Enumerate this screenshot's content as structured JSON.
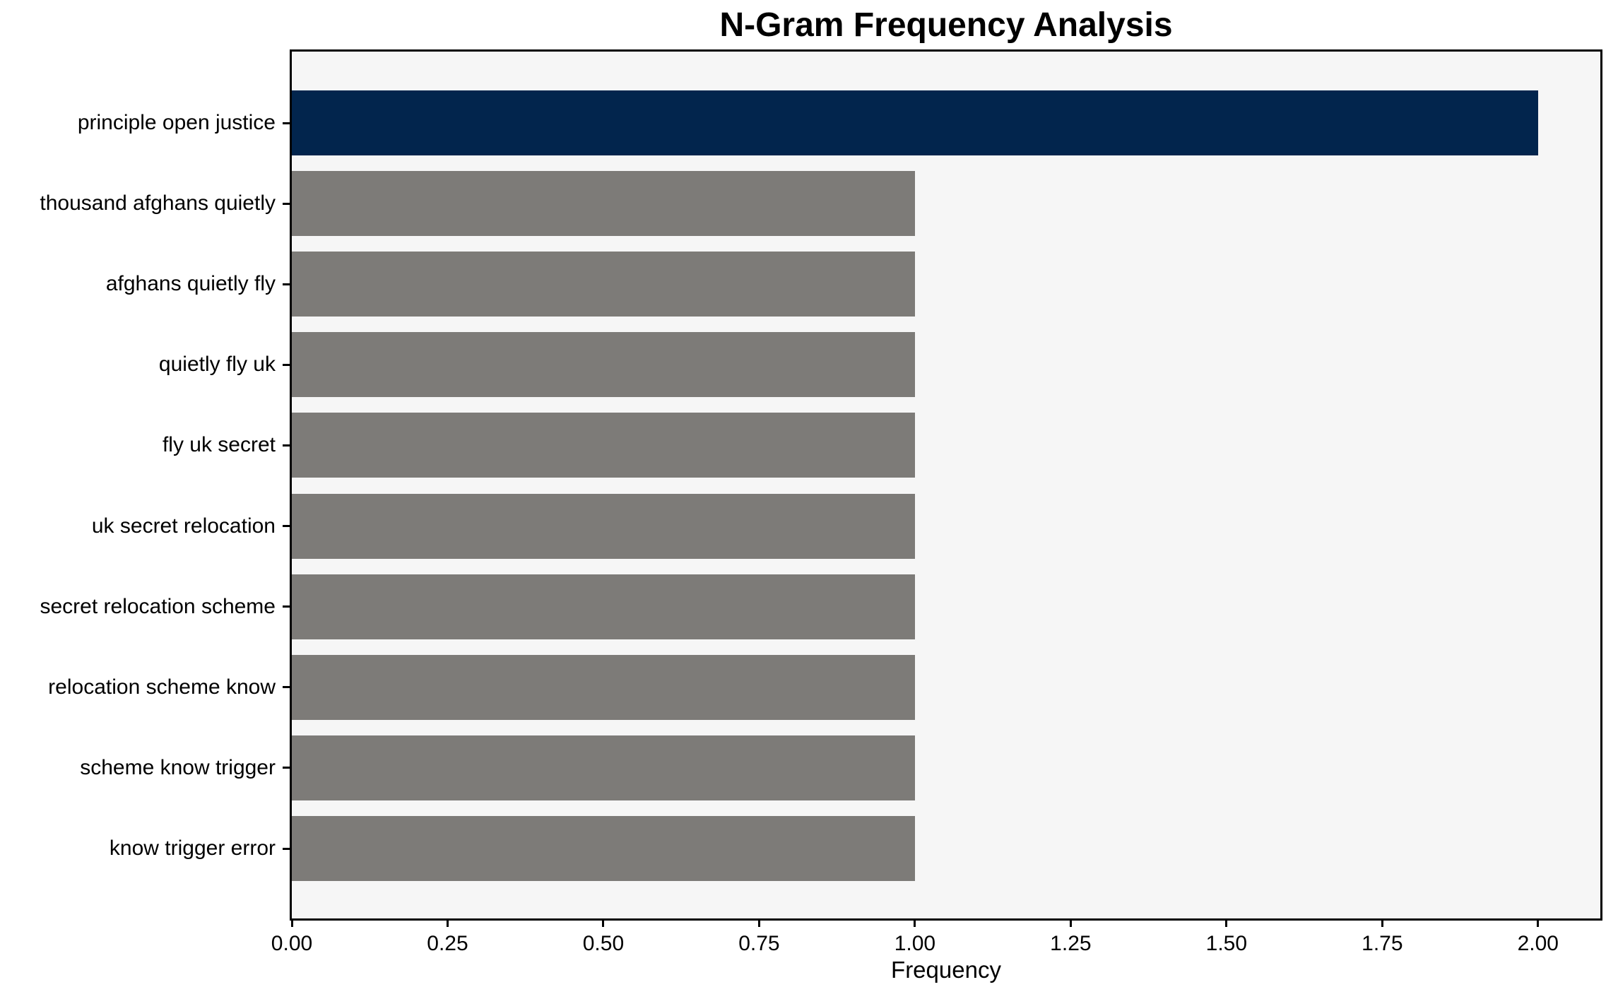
{
  "chart_data": {
    "type": "bar",
    "orientation": "horizontal",
    "title": "N-Gram Frequency Analysis",
    "xlabel": "Frequency",
    "ylabel": "",
    "categories": [
      "principle open justice",
      "thousand afghans quietly",
      "afghans quietly fly",
      "quietly fly uk",
      "fly uk secret",
      "uk secret relocation",
      "secret relocation scheme",
      "relocation scheme know",
      "scheme know trigger",
      "know trigger error"
    ],
    "values": [
      2,
      1,
      1,
      1,
      1,
      1,
      1,
      1,
      1,
      1
    ],
    "highlight_index": 0,
    "xlim": [
      0,
      2.1
    ],
    "x_tick_values": [
      0,
      0.25,
      0.5,
      0.75,
      1.0,
      1.25,
      1.5,
      1.75,
      2.0
    ],
    "x_tick_labels": [
      "0.00",
      "0.25",
      "0.50",
      "0.75",
      "1.00",
      "1.25",
      "1.50",
      "1.75",
      "2.00"
    ],
    "bar_height_frac": 0.8,
    "grid": false,
    "legend": "none",
    "colors": {
      "highlight_bar": "#02254d",
      "default_bar": "#7d7b78",
      "plot_background": "#f6f6f6",
      "figure_background": "#ffffff",
      "axis": "#000000",
      "text": "#000000"
    }
  }
}
